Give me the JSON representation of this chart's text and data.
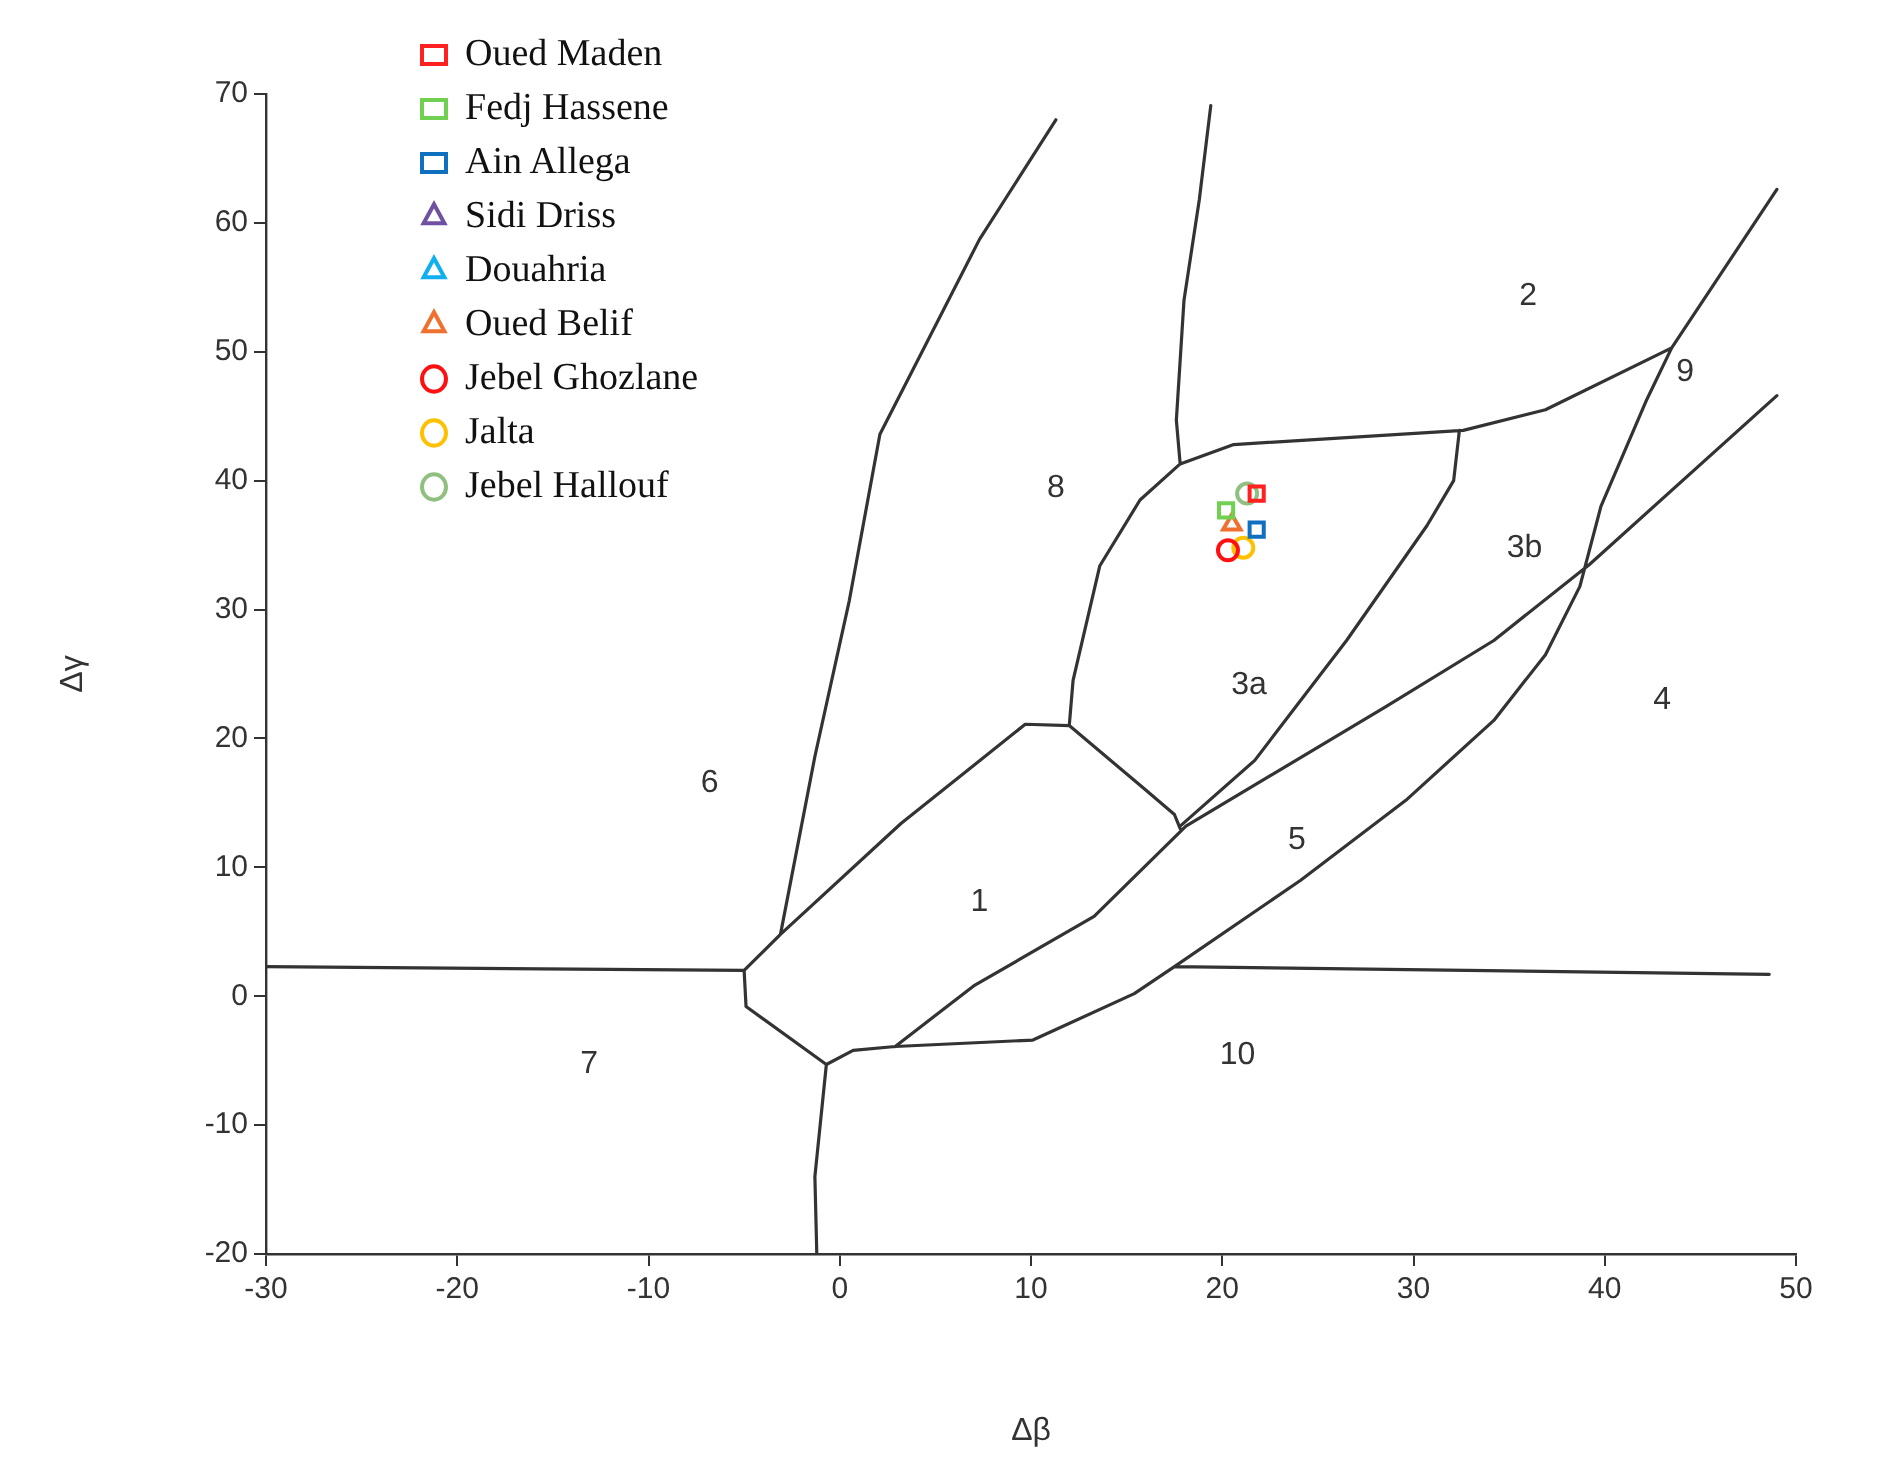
{
  "chart_data": {
    "type": "scatter",
    "xlabel": "Δβ",
    "ylabel": "Δγ",
    "xlim": [
      -30,
      50
    ],
    "ylim": [
      -20,
      70
    ],
    "xticks": [
      -30,
      -20,
      -10,
      0,
      10,
      20,
      30,
      40,
      50
    ],
    "yticks": [
      -20,
      -10,
      0,
      10,
      20,
      30,
      40,
      50,
      60,
      70
    ],
    "grid": false,
    "legend": "top left",
    "series": [
      {
        "name": "Oued Maden",
        "color": "#ff2020",
        "marker": "square",
        "x": [
          21.8
        ],
        "values": [
          39.0
        ]
      },
      {
        "name": "Fedj Hassene",
        "color": "#70d050",
        "marker": "square",
        "x": [
          20.2
        ],
        "values": [
          37.7
        ]
      },
      {
        "name": "Ain Allega",
        "color": "#1070c0",
        "marker": "square",
        "x": [
          21.8
        ],
        "values": [
          36.2
        ]
      },
      {
        "name": "Sidi Driss",
        "color": "#7050a0",
        "marker": "triangle"
      },
      {
        "name": "Douahria",
        "color": "#10b0f0",
        "marker": "triangle"
      },
      {
        "name": "Oued Belif",
        "color": "#f07030",
        "marker": "triangle",
        "x": [
          20.5
        ],
        "values": [
          36.6
        ]
      },
      {
        "name": "Jebel Ghozlane",
        "color": "#ff1010",
        "marker": "circle",
        "x": [
          20.3
        ],
        "values": [
          34.6
        ]
      },
      {
        "name": "Jalta",
        "color": "#ffc000",
        "marker": "circle",
        "x": [
          21.1
        ],
        "values": [
          34.8
        ]
      },
      {
        "name": "Jebel Hallouf",
        "color": "#90c080",
        "marker": "circle",
        "x": [
          21.3
        ],
        "values": [
          39.0
        ]
      },
      {
        "type": "line",
        "color": "#333333",
        "marker": "none",
        "line_style": "solid",
        "x": [
          -30,
          -5,
          -4.9,
          -0.7,
          -1.3,
          -1.2,
          null,
          -0.7,
          0.7,
          2.9,
          10.1,
          15.4,
          17.5,
          24.1,
          29.6,
          34.2,
          36.9,
          38.7,
          39.8,
          42.2,
          43.5,
          49.0,
          null,
          17.5,
          48.6,
          null,
          2.9,
          7.0,
          13.3,
          18.1,
          28.6,
          34.2,
          39.2,
          49.0,
          null,
          17.8,
          21.7,
          26.5,
          30.7,
          32.1,
          32.4,
          null,
          -5,
          -3.1,
          3.2,
          9.7,
          12.0,
          16.0,
          17.5,
          17.8,
          null,
          12.0,
          12.2,
          13.6,
          15.7,
          17.8,
          17.6,
          18.0,
          18.8,
          19.4,
          null,
          17.8,
          20.6,
          32.6,
          36.9,
          43.5,
          null,
          -3.1,
          -1.3,
          0.5,
          2.1,
          7.3,
          11.3
        ],
        "values": [
          2.3,
          2.0,
          -0.8,
          -5.3,
          -14,
          -20,
          null,
          -5.3,
          -4.2,
          -3.9,
          -3.4,
          0.2,
          2.3,
          9.0,
          15.2,
          21.4,
          26.5,
          31.8,
          38.0,
          46.3,
          50.3,
          62.6,
          null,
          2.3,
          1.7,
          null,
          -3.9,
          0.8,
          6.2,
          13.2,
          22.5,
          27.6,
          33.5,
          46.6,
          null,
          13.2,
          18.3,
          27.6,
          36.5,
          40.0,
          43.9,
          null,
          2.0,
          4.8,
          13.4,
          21.1,
          21.0,
          16.0,
          14.1,
          13.0,
          null,
          21.0,
          24.5,
          33.4,
          38.5,
          41.3,
          44.7,
          54.0,
          61.8,
          69.1,
          null,
          41.3,
          42.8,
          43.9,
          45.5,
          50.3,
          null,
          4.8,
          18.6,
          30.7,
          43.6,
          58.7,
          68.0
        ]
      }
    ],
    "annotations": [
      "1",
      "2",
      "3a",
      "3b",
      "4",
      "5",
      "6",
      "7",
      "8",
      "9",
      "10"
    ]
  }
}
